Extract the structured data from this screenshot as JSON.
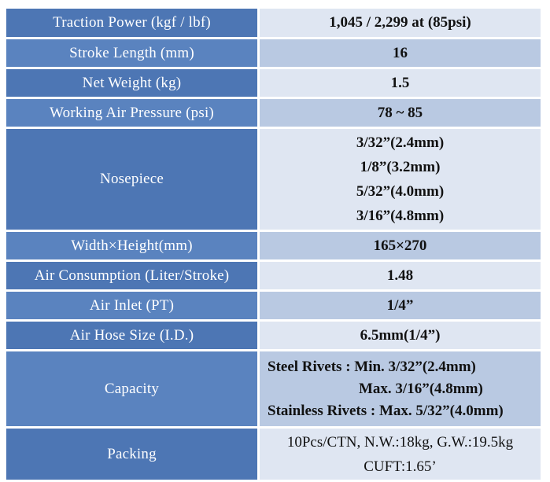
{
  "colors": {
    "label_bg": "#4d76b4",
    "label_text": "#ffffff",
    "value_bg_light": "#dfe6f2",
    "value_bg_dark": "#b9c9e2",
    "value_text": "#111111"
  },
  "rows": [
    {
      "label": "Traction Power (kgf / lbf)",
      "value": "1,045 / 2,299 at (85psi)"
    },
    {
      "label": "Stroke Length (mm)",
      "value": "16"
    },
    {
      "label": "Net Weight (kg)",
      "value": "1.5"
    },
    {
      "label": "Working Air Pressure (psi)",
      "value": "78 ~ 85"
    },
    {
      "label": "Nosepiece",
      "values": [
        "3/32”(2.4mm)",
        "1/8”(3.2mm)",
        "5/32”(4.0mm)",
        "3/16”(4.8mm)"
      ]
    },
    {
      "label": "Width×Height(mm)",
      "value": "165×270"
    },
    {
      "label": "Air Consumption (Liter/Stroke)",
      "value": "1.48"
    },
    {
      "label": "Air Inlet (PT)",
      "value": "1/4”"
    },
    {
      "label": "Air Hose Size (I.D.)",
      "value": "6.5mm(1/4”)"
    },
    {
      "label": "Capacity",
      "values": [
        "Steel Rivets : Min. 3/32”(2.4mm)",
        "Max. 3/16”(4.8mm)",
        "Stainless Rivets : Max. 5/32”(4.0mm)"
      ]
    },
    {
      "label": "Packing",
      "values": [
        "10Pcs/CTN, N.W.:18kg, G.W.:19.5kg",
        "CUFT:1.65’"
      ]
    }
  ]
}
